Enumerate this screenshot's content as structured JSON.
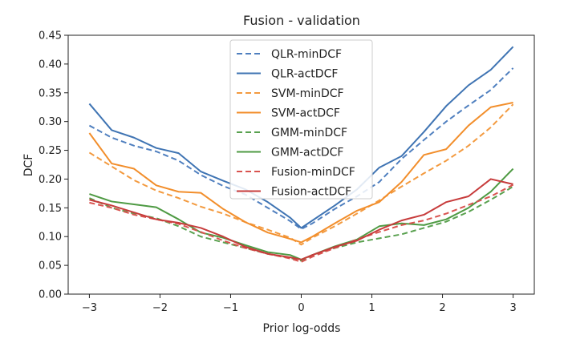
{
  "chart_data": {
    "type": "line",
    "title": "Fusion - validation",
    "xlabel": "Prior log-odds",
    "ylabel": "DCF",
    "xlim": [
      -3.3,
      3.3
    ],
    "ylim": [
      0.0,
      0.45
    ],
    "xticks": [
      -3,
      -2,
      -1,
      0,
      1,
      2,
      3
    ],
    "xtick_labels": [
      "−3",
      "−2",
      "−1",
      "0",
      "1",
      "2",
      "3"
    ],
    "yticks": [
      0.0,
      0.05,
      0.1,
      0.15,
      0.2,
      0.25,
      0.3,
      0.35,
      0.4,
      0.45
    ],
    "ytick_labels": [
      "0.00",
      "0.05",
      "0.10",
      "0.15",
      "0.20",
      "0.25",
      "0.30",
      "0.35",
      "0.40",
      "0.45"
    ],
    "legend_position": "top-center",
    "grid": false,
    "x": [
      -3.0,
      -2.684,
      -2.368,
      -2.053,
      -1.737,
      -1.421,
      -1.105,
      -0.789,
      -0.474,
      -0.158,
      0.0,
      0.158,
      0.474,
      0.789,
      1.105,
      1.421,
      1.737,
      2.053,
      2.368,
      2.684,
      3.0
    ],
    "series": [
      {
        "name": "QLR-minDCF",
        "color": "#4f7fbf",
        "dash": "dashed",
        "values": [
          0.293,
          0.272,
          0.258,
          0.248,
          0.232,
          0.207,
          0.188,
          0.173,
          0.15,
          0.127,
          0.113,
          0.123,
          0.148,
          0.17,
          0.195,
          0.235,
          0.268,
          0.3,
          0.328,
          0.355,
          0.393
        ]
      },
      {
        "name": "QLR-actDCF",
        "color": "#3f74b3",
        "dash": "solid",
        "values": [
          0.331,
          0.285,
          0.272,
          0.254,
          0.245,
          0.213,
          0.197,
          0.182,
          0.16,
          0.133,
          0.115,
          0.128,
          0.154,
          0.182,
          0.22,
          0.24,
          0.282,
          0.327,
          0.363,
          0.39,
          0.43
        ]
      },
      {
        "name": "SVM-minDCF",
        "color": "#f39a3f",
        "dash": "dashed",
        "values": [
          0.246,
          0.222,
          0.198,
          0.18,
          0.167,
          0.152,
          0.14,
          0.125,
          0.112,
          0.098,
          0.086,
          0.098,
          0.118,
          0.14,
          0.163,
          0.187,
          0.21,
          0.232,
          0.258,
          0.29,
          0.33
        ]
      },
      {
        "name": "SVM-actDCF",
        "color": "#f28e2b",
        "dash": "solid",
        "values": [
          0.28,
          0.227,
          0.218,
          0.189,
          0.178,
          0.176,
          0.148,
          0.125,
          0.107,
          0.096,
          0.09,
          0.1,
          0.123,
          0.145,
          0.16,
          0.195,
          0.242,
          0.252,
          0.293,
          0.325,
          0.333
        ]
      },
      {
        "name": "GMM-minDCF",
        "color": "#59a14f",
        "dash": "dashed",
        "values": [
          0.167,
          0.15,
          0.14,
          0.132,
          0.118,
          0.1,
          0.09,
          0.08,
          0.07,
          0.063,
          0.058,
          0.068,
          0.08,
          0.09,
          0.097,
          0.104,
          0.115,
          0.126,
          0.143,
          0.164,
          0.187
        ]
      },
      {
        "name": "GMM-actDCF",
        "color": "#4e9a43",
        "dash": "solid",
        "values": [
          0.174,
          0.161,
          0.156,
          0.151,
          0.13,
          0.107,
          0.098,
          0.085,
          0.073,
          0.068,
          0.06,
          0.068,
          0.083,
          0.095,
          0.118,
          0.123,
          0.12,
          0.13,
          0.15,
          0.178,
          0.218
        ]
      },
      {
        "name": "Fusion-minDCF",
        "color": "#d9534f",
        "dash": "dashed",
        "values": [
          0.159,
          0.15,
          0.138,
          0.13,
          0.122,
          0.108,
          0.093,
          0.08,
          0.07,
          0.062,
          0.056,
          0.065,
          0.08,
          0.095,
          0.108,
          0.12,
          0.128,
          0.14,
          0.155,
          0.17,
          0.19
        ]
      },
      {
        "name": "Fusion-actDCF",
        "color": "#c73b3b",
        "dash": "solid",
        "values": [
          0.164,
          0.154,
          0.142,
          0.13,
          0.124,
          0.115,
          0.1,
          0.082,
          0.07,
          0.064,
          0.06,
          0.068,
          0.082,
          0.093,
          0.112,
          0.128,
          0.138,
          0.16,
          0.17,
          0.2,
          0.191
        ]
      }
    ]
  }
}
